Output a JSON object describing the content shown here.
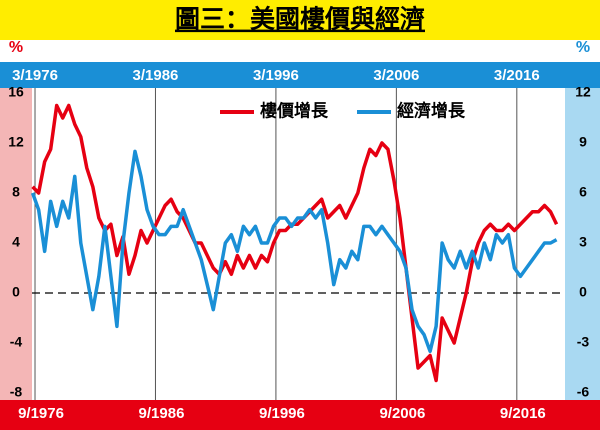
{
  "chart_data": {
    "type": "line",
    "title": "圖三：美國樓價與經濟",
    "y_unit": "%",
    "y2_unit": "%",
    "legend": "top",
    "x": [
      1976,
      1976.5,
      1977,
      1977.5,
      1978,
      1978.5,
      1979,
      1979.5,
      1980,
      1980.5,
      1981,
      1981.5,
      1982,
      1982.5,
      1983,
      1983.5,
      1984,
      1984.5,
      1985,
      1985.5,
      1986,
      1986.5,
      1987,
      1987.5,
      1988,
      1988.5,
      1989,
      1989.5,
      1990,
      1990.5,
      1991,
      1991.5,
      1992,
      1992.5,
      1993,
      1993.5,
      1994,
      1994.5,
      1995,
      1995.5,
      1996,
      1996.5,
      1997,
      1997.5,
      1998,
      1998.5,
      1999,
      1999.5,
      2000,
      2000.5,
      2001,
      2001.5,
      2002,
      2002.5,
      2003,
      2003.5,
      2004,
      2004.5,
      2005,
      2005.5,
      2006,
      2006.5,
      2007,
      2007.5,
      2008,
      2008.5,
      2009,
      2009.5,
      2010,
      2010.5,
      2011,
      2011.5,
      2012,
      2012.5,
      2013,
      2013.5,
      2014,
      2014.5,
      2015,
      2015.5,
      2016,
      2016.5,
      2017,
      2017.5,
      2018,
      2018.5,
      2019,
      2019.5
    ],
    "series": [
      {
        "name": "樓價增長",
        "color": "#e60012",
        "axis": "y",
        "values": [
          8.5,
          8,
          10.5,
          11.5,
          15,
          14,
          15,
          13.5,
          12.5,
          10,
          8.5,
          6,
          5,
          5.5,
          3,
          4.5,
          1.5,
          3,
          5,
          4,
          5,
          6,
          7,
          7.5,
          6.5,
          6,
          5,
          4,
          4,
          3,
          2,
          1.5,
          2.5,
          1.5,
          3,
          2,
          3,
          2,
          3,
          2.5,
          4,
          5,
          5,
          5.5,
          5.5,
          6,
          6.5,
          7,
          7.5,
          6,
          6.5,
          7,
          6,
          7,
          8,
          10,
          11.5,
          11,
          12,
          11.5,
          9,
          6,
          2,
          -2,
          -6,
          -5.5,
          -5,
          -7,
          -2,
          -3,
          -4,
          -2,
          0,
          2.5,
          4,
          5,
          5.5,
          5,
          5,
          5.5,
          5,
          5.5,
          6,
          6.5,
          6.5,
          7,
          6.5,
          5.5
        ]
      },
      {
        "name": "經濟增長",
        "color": "#1a8fd6",
        "axis": "y2",
        "values": [
          6,
          5,
          2.5,
          5.5,
          4,
          5.5,
          4.5,
          7,
          3,
          1,
          -1,
          1,
          4,
          1,
          -2,
          3,
          6,
          8.5,
          7,
          5,
          4,
          3.5,
          3.5,
          4,
          4,
          5,
          4,
          3,
          2,
          0.5,
          -1,
          1,
          3,
          3.5,
          2.5,
          4,
          3.5,
          4,
          3,
          3,
          4,
          4.5,
          4.5,
          4,
          4.5,
          4.5,
          5,
          4.5,
          5,
          3,
          0.5,
          2,
          1.5,
          2.5,
          2,
          4,
          4,
          3.5,
          4,
          3.5,
          3,
          2.5,
          1.5,
          -1,
          -2,
          -2.5,
          -3.5,
          -2,
          3,
          2,
          1.5,
          2.5,
          1.5,
          2.5,
          1.5,
          3,
          2,
          3.5,
          3,
          3.5,
          1.5,
          1,
          1.5,
          2,
          2.5,
          3,
          3,
          3.2
        ]
      }
    ],
    "xlim": [
      1975.95,
      2020.2
    ],
    "xticks": [
      {
        "value": 1976.2,
        "label": "3/1976"
      },
      {
        "value": 1986.2,
        "label": "3/1986"
      },
      {
        "value": 1996.2,
        "label": "3/1996"
      },
      {
        "value": 2006.2,
        "label": "3/2006"
      },
      {
        "value": 2016.2,
        "label": "3/2016"
      }
    ],
    "x2ticks": [
      {
        "value": 1976.7,
        "label": "9/1976"
      },
      {
        "value": 1986.7,
        "label": "9/1986"
      },
      {
        "value": 1996.7,
        "label": "9/1996"
      },
      {
        "value": 2006.7,
        "label": "9/2006"
      },
      {
        "value": 2016.7,
        "label": "9/2016"
      }
    ],
    "ylim": [
      -8,
      16
    ],
    "yticks": [
      -8,
      -4,
      0,
      4,
      8,
      12,
      16
    ],
    "y2lim": [
      -6,
      12
    ],
    "y2ticks": [
      -6,
      -3,
      0,
      3,
      6,
      9,
      12
    ],
    "zero_line": true
  }
}
